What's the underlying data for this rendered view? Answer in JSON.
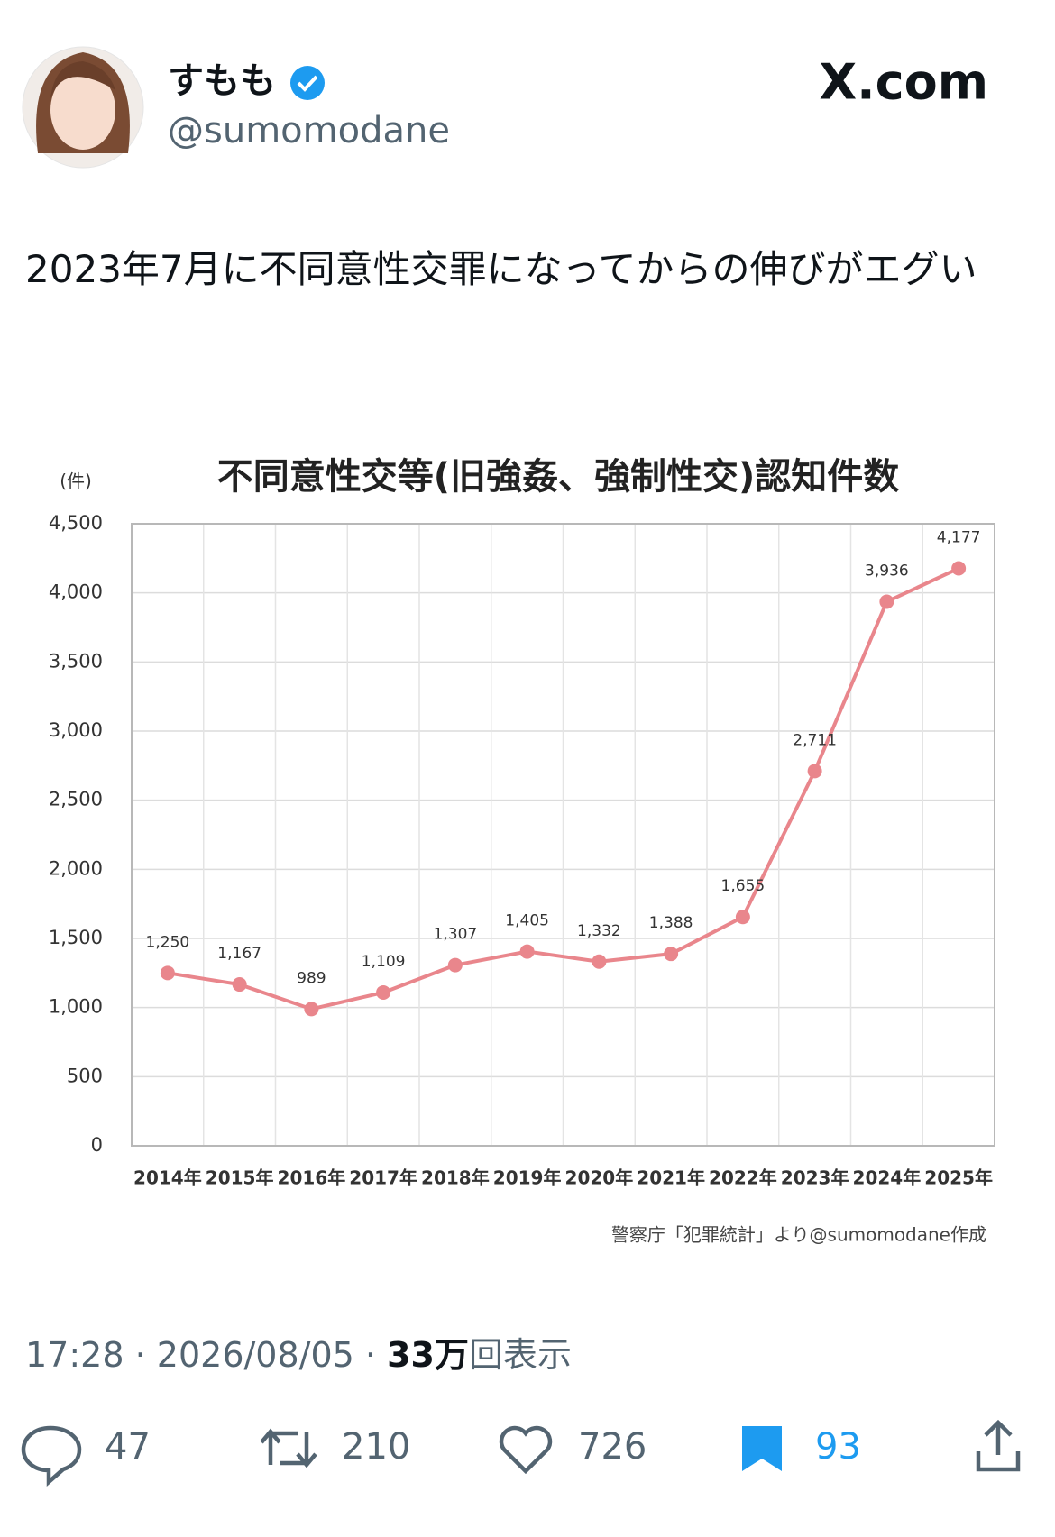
{
  "tweet": {
    "name": "すもも",
    "handle": "@sumomodane",
    "brand": "X.com",
    "text": "2023年7月に不同意性交罪になってからの伸びがエグい",
    "time": "17:28",
    "separator": "·",
    "date": "2026/08/05",
    "views": "33万",
    "views_label": "回表示",
    "replies": 47,
    "retweets": 210,
    "likes": 726,
    "bookmarks": 93
  },
  "chart_data": {
    "type": "line",
    "title": "不同意性交等(旧強姦、強制性交)認知件数",
    "y_unit": "(件)",
    "categories": [
      "2014年",
      "2015年",
      "2016年",
      "2017年",
      "2018年",
      "2019年",
      "2020年",
      "2021年",
      "2022年",
      "2023年",
      "2024年",
      "2025年"
    ],
    "values": [
      1250,
      1167,
      989,
      1109,
      1307,
      1405,
      1332,
      1388,
      1655,
      2711,
      3936,
      4177
    ],
    "value_labels": [
      "1,250",
      "1,167",
      "989",
      "1,109",
      "1,307",
      "1,405",
      "1,332",
      "1,388",
      "1,655",
      "2,711",
      "3,936",
      "4,177"
    ],
    "color": "#e9868c",
    "ylim": [
      0,
      4500
    ],
    "yticks": [
      0,
      500,
      {
        "value": 1000,
        "label": "1,000"
      },
      {
        "value": 1500,
        "label": "1,500"
      },
      {
        "value": 2000,
        "label": "2,000"
      },
      {
        "value": 2500,
        "label": "2,500"
      },
      {
        "value": 3000,
        "label": "3,000"
      },
      {
        "value": 3500,
        "label": "3,500"
      },
      {
        "value": 4000,
        "label": "4,000"
      },
      {
        "value": 4500,
        "label": "4,500"
      }
    ],
    "grid": true,
    "source": "警察庁「犯罪統計」より@sumomodane作成"
  }
}
